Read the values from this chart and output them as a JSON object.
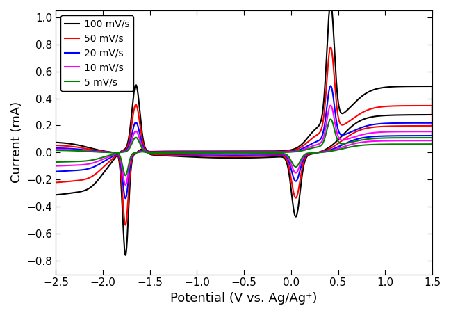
{
  "xlabel": "Potential (V vs. Ag/Ag⁺)",
  "ylabel": "Current (mA)",
  "xlim": [
    -2.5,
    1.5
  ],
  "ylim": [
    -0.9,
    1.05
  ],
  "xticks": [
    -2.5,
    -2.0,
    -1.5,
    -1.0,
    -0.5,
    0.0,
    0.5,
    1.0,
    1.5
  ],
  "yticks": [
    -0.8,
    -0.6,
    -0.4,
    -0.2,
    0.0,
    0.2,
    0.4,
    0.6,
    0.8,
    1.0
  ],
  "legend_labels": [
    "100 mV/s",
    "50 mV/s",
    "20 mV/s",
    "10 mV/s",
    "5 mV/s"
  ],
  "colors": [
    "black",
    "red",
    "blue",
    "magenta",
    "green"
  ],
  "scan_rates": [
    100,
    50,
    20,
    10,
    5
  ],
  "background": "white"
}
